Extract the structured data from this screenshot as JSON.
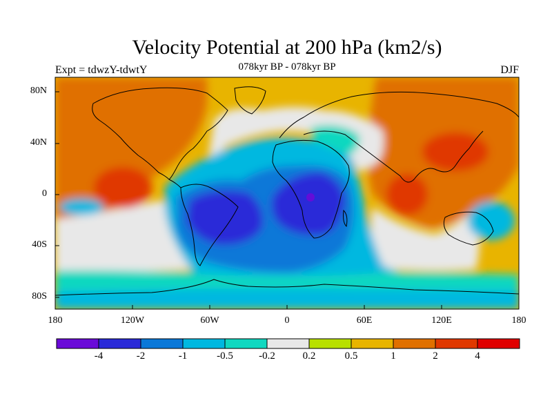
{
  "title": "Velocity Potential at 200 hPa (km2/s)",
  "subtitle": "078kyr BP - 078kyr BP",
  "left_label": "Expt = tdwzY-tdwtY",
  "right_label": "DJF",
  "lat_labels": [
    "80N",
    "40N",
    "0",
    "40S",
    "80S"
  ],
  "lon_labels": [
    "180",
    "120W",
    "60W",
    "0",
    "60E",
    "120E",
    "180"
  ],
  "colorbar": {
    "levels": [
      "-4",
      "-2",
      "-1",
      "-0.5",
      "-0.2",
      "0.2",
      "0.5",
      "1",
      "2",
      "4"
    ],
    "colors": [
      "#6a0ad8",
      "#2a2ad8",
      "#0a78d8",
      "#00b8e0",
      "#10d8c0",
      "#e8e8e8",
      "#b8e000",
      "#e8b400",
      "#e07000",
      "#e03800",
      "#e00000"
    ]
  },
  "map_data": {
    "variable": "Velocity Potential",
    "level": "200 hPa",
    "units": "km2/s",
    "season": "DJF",
    "projection": "cylindrical equidistant",
    "extent": {
      "lon": [
        -180,
        180
      ],
      "lat": [
        -90,
        90
      ]
    },
    "regions": [
      {
        "name": "North Pacific / North America",
        "lon": [
          -180,
          -100
        ],
        "lat": [
          0,
          90
        ],
        "level": "1 to 2"
      },
      {
        "name": "Eastern tropical Pacific",
        "lon": [
          -150,
          -120
        ],
        "lat": [
          -5,
          15
        ],
        "level": "2 to 4"
      },
      {
        "name": "South America / South Atlantic",
        "lon": [
          -70,
          -30
        ],
        "lat": [
          -35,
          0
        ],
        "level": "-4 to -2"
      },
      {
        "name": "Southern Africa",
        "lon": [
          0,
          40
        ],
        "lat": [
          -30,
          10
        ],
        "level": "-4 to -2"
      },
      {
        "name": "Central Africa",
        "lon": [
          15,
          15
        ],
        "lat": [
          -5,
          -5
        ],
        "level": "< -4"
      },
      {
        "name": "East Asia",
        "lon": [
          100,
          160
        ],
        "lat": [
          25,
          45
        ],
        "level": "2 to 4"
      },
      {
        "name": "Indian Ocean / Maritime Continent",
        "lon": [
          80,
          100
        ],
        "lat": [
          -15,
          10
        ],
        "level": "2 to 4"
      },
      {
        "name": "Southern Ocean",
        "lon": [
          -180,
          180
        ],
        "lat": [
          -85,
          -45
        ],
        "level": "-0.5 to -0.2"
      }
    ]
  }
}
